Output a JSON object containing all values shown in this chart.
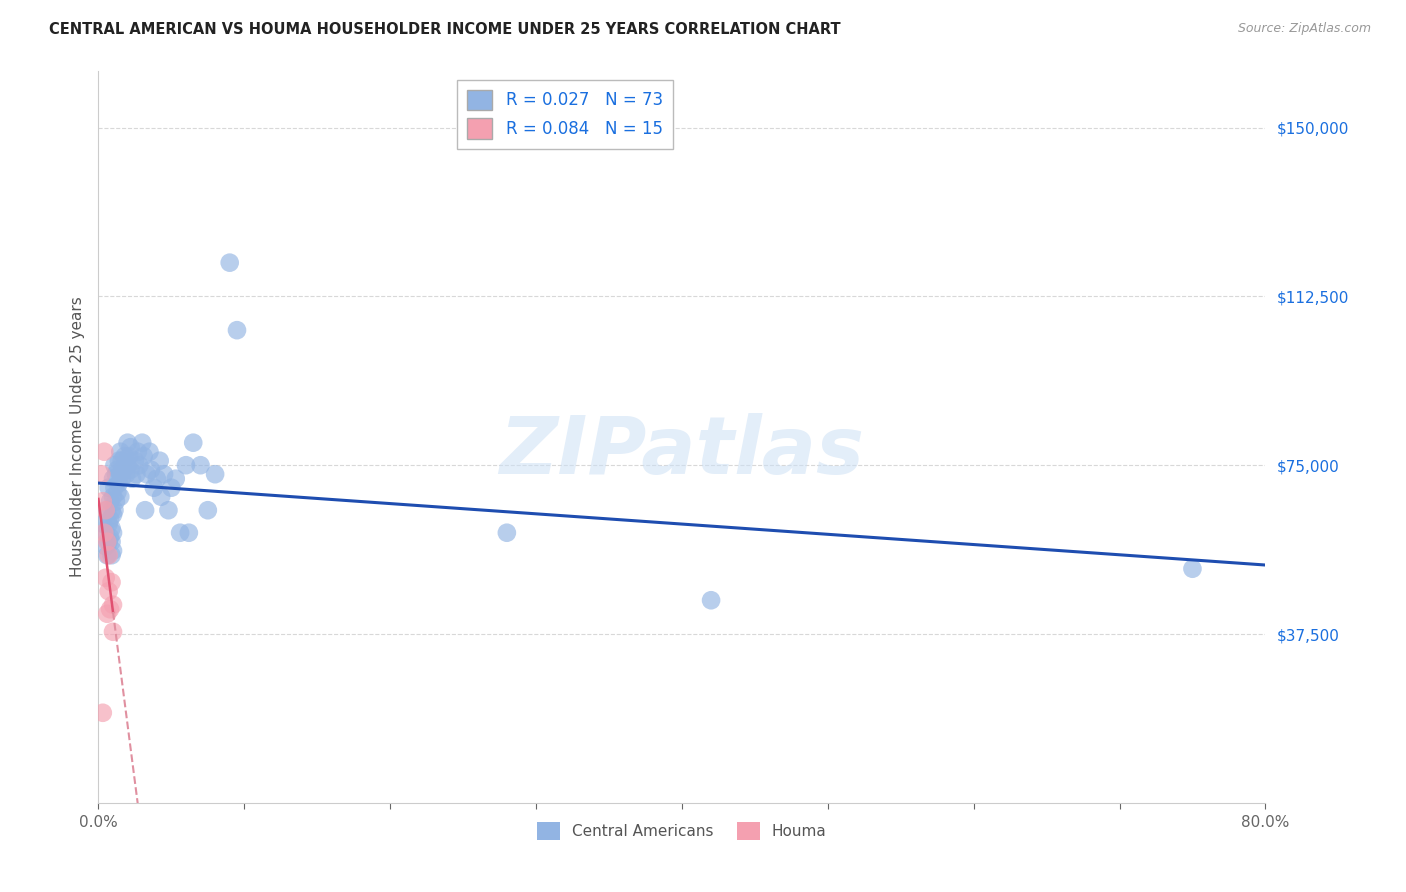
{
  "title": "CENTRAL AMERICAN VS HOUMA HOUSEHOLDER INCOME UNDER 25 YEARS CORRELATION CHART",
  "source": "Source: ZipAtlas.com",
  "ylabel": "Householder Income Under 25 years",
  "watermark": "ZIPatlas",
  "xlim": [
    0.0,
    0.8
  ],
  "ylim": [
    0,
    162500
  ],
  "xtick_vals": [
    0.0,
    0.1,
    0.2,
    0.3,
    0.4,
    0.5,
    0.6,
    0.7,
    0.8
  ],
  "xtick_labels": [
    "0.0%",
    "",
    "",
    "",
    "",
    "",
    "",
    "",
    "80.0%"
  ],
  "ytick_values": [
    0,
    37500,
    75000,
    112500,
    150000
  ],
  "ytick_labels": [
    "",
    "$37,500",
    "$75,000",
    "$112,500",
    "$150,000"
  ],
  "r_blue": 0.027,
  "n_blue": 73,
  "r_pink": 0.084,
  "n_pink": 15,
  "blue_color": "#92b4e3",
  "pink_color": "#f4a0b0",
  "trendline_blue_color": "#1e4db0",
  "trendline_pink_solid_color": "#e05070",
  "trendline_pink_dash_color": "#e090a0",
  "background_color": "#ffffff",
  "grid_color": "#d8d8d8",
  "blue_scatter_x": [
    0.003,
    0.005,
    0.005,
    0.006,
    0.006,
    0.007,
    0.007,
    0.007,
    0.008,
    0.008,
    0.008,
    0.009,
    0.009,
    0.009,
    0.009,
    0.01,
    0.01,
    0.01,
    0.01,
    0.01,
    0.011,
    0.011,
    0.011,
    0.012,
    0.012,
    0.013,
    0.013,
    0.014,
    0.014,
    0.015,
    0.015,
    0.015,
    0.016,
    0.016,
    0.017,
    0.018,
    0.019,
    0.02,
    0.02,
    0.021,
    0.022,
    0.022,
    0.023,
    0.025,
    0.026,
    0.027,
    0.028,
    0.03,
    0.031,
    0.032,
    0.033,
    0.035,
    0.036,
    0.038,
    0.04,
    0.042,
    0.043,
    0.045,
    0.048,
    0.05,
    0.053,
    0.056,
    0.06,
    0.062,
    0.065,
    0.07,
    0.075,
    0.08,
    0.09,
    0.095,
    0.28,
    0.42,
    0.75
  ],
  "blue_scatter_y": [
    62000,
    60000,
    57000,
    65000,
    55000,
    70000,
    62000,
    58000,
    67000,
    63000,
    59000,
    65000,
    61000,
    58000,
    55000,
    72000,
    68000,
    64000,
    60000,
    56000,
    75000,
    70000,
    65000,
    73000,
    67000,
    74000,
    69000,
    76000,
    71000,
    78000,
    73000,
    68000,
    76000,
    72000,
    74000,
    77000,
    73000,
    80000,
    75000,
    77000,
    79000,
    74000,
    72000,
    76000,
    73000,
    78000,
    75000,
    80000,
    77000,
    65000,
    73000,
    78000,
    74000,
    70000,
    72000,
    76000,
    68000,
    73000,
    65000,
    70000,
    72000,
    60000,
    75000,
    60000,
    80000,
    75000,
    65000,
    73000,
    120000,
    105000,
    60000,
    45000,
    52000
  ],
  "pink_scatter_x": [
    0.002,
    0.003,
    0.004,
    0.004,
    0.005,
    0.005,
    0.006,
    0.006,
    0.007,
    0.007,
    0.008,
    0.009,
    0.01,
    0.01,
    0.003
  ],
  "pink_scatter_y": [
    73000,
    67000,
    78000,
    60000,
    65000,
    50000,
    58000,
    42000,
    55000,
    47000,
    43000,
    49000,
    44000,
    38000,
    20000
  ]
}
